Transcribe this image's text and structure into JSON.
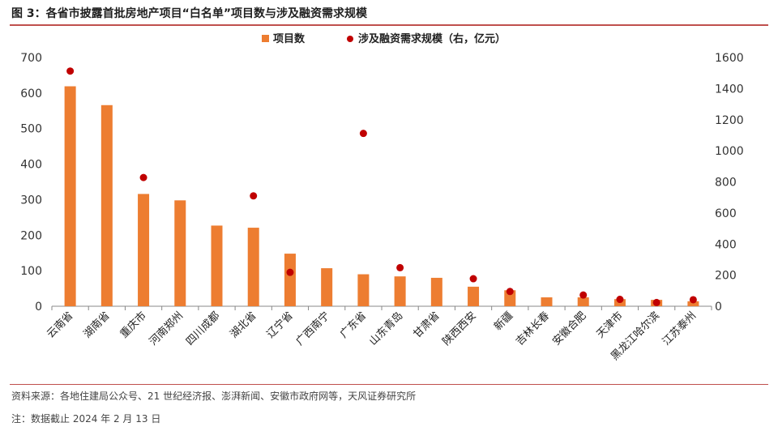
{
  "figure_title": "图 3：各省市披露首批房地产项目“白名单”项目数与涉及融资需求规模",
  "source_text": "资料来源：各地住建局公众号、21 世纪经济报、澎湃新闻、安徽市政府网等，天风证券研究所",
  "note_text": "注：数据截止 2024 年 2 月 13 日",
  "colors": {
    "bar": "#ED7D31",
    "dot": "#C00000",
    "rule": "#C0504D"
  },
  "chart_data": {
    "type": "bar",
    "categories": [
      "云南省",
      "湖南省",
      "重庆市",
      "河南郑州",
      "四川成都",
      "湖北省",
      "辽宁省",
      "广西南宁",
      "广东省",
      "山东青岛",
      "甘肃省",
      "陕西西安",
      "新疆",
      "吉林长春",
      "安徽合肥",
      "天津市",
      "黑龙江哈尔滨",
      "江苏泰州"
    ],
    "series": [
      {
        "name": "项目数",
        "type": "bar",
        "axis": "left",
        "values": [
          619,
          566,
          316,
          298,
          227,
          221,
          148,
          107,
          90,
          84,
          80,
          55,
          45,
          25,
          25,
          20,
          18,
          14
        ]
      },
      {
        "name": "涉及融资需求规模（右，亿元）",
        "type": "scatter",
        "axis": "right",
        "values": [
          1513,
          null,
          828,
          null,
          null,
          710,
          218,
          null,
          1112,
          248,
          null,
          177,
          95,
          null,
          72,
          44,
          24,
          42
        ]
      }
    ],
    "y_left": {
      "min": 0,
      "max": 700,
      "ticks": [
        0,
        100,
        200,
        300,
        400,
        500,
        600,
        700
      ]
    },
    "y_right": {
      "min": 0,
      "max": 1600,
      "ticks": [
        0,
        200,
        400,
        600,
        800,
        1000,
        1200,
        1400,
        1600
      ]
    },
    "legend_placement": "top-center",
    "grid": false
  }
}
